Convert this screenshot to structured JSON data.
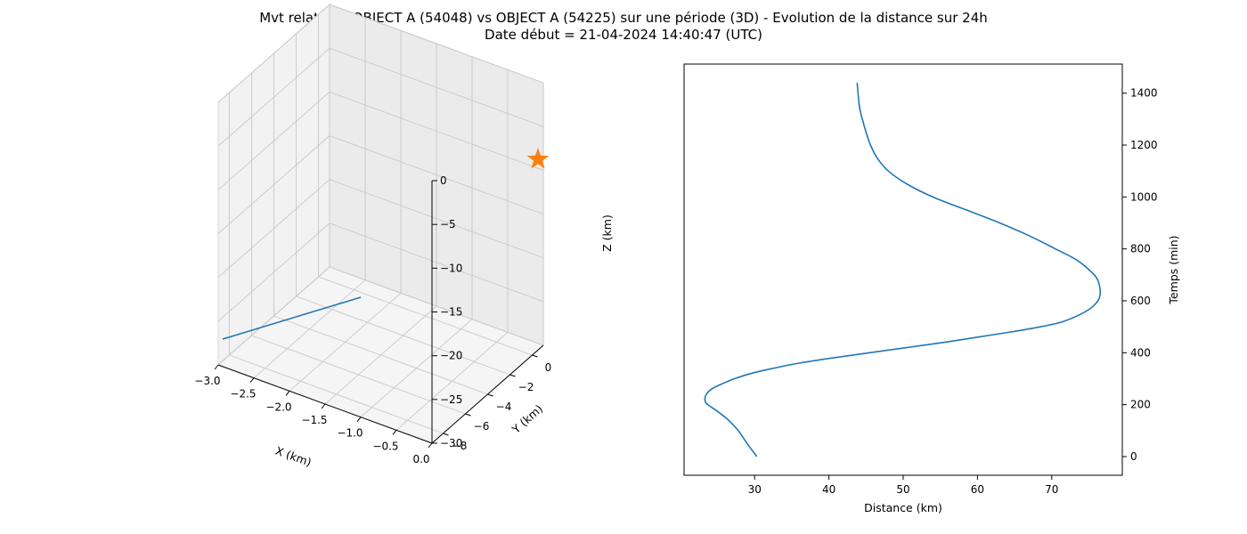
{
  "chart_data": [
    {
      "type": "line3d",
      "title_line1": "Mvt relatif de OBJECT A (54048) vs OBJECT A (54225) sur une période (3D) - Evolution de la distance sur 24h",
      "title_line2": "Date début = 21-04-2024 14:40:47 (UTC)",
      "xlabel": "X (km)",
      "ylabel": "Y (km)",
      "zlabel": "Z (km)",
      "xlim": [
        -3.0,
        0.0
      ],
      "ylim": [
        -9,
        1
      ],
      "zlim": [
        -30,
        0
      ],
      "xticks": [
        "−3.0",
        "−2.5",
        "−2.0",
        "−1.5",
        "−1.0",
        "−0.5",
        "0.0"
      ],
      "yticks": [
        "−8",
        "−6",
        "−4",
        "−2",
        "0"
      ],
      "zticks": [
        "0",
        "−5",
        "−10",
        "−15",
        "−20",
        "−25",
        "−30"
      ],
      "series": [
        {
          "color": "#1f77b4",
          "marker": "line"
        },
        {
          "color": "#ff7f0e",
          "marker": "star"
        }
      ],
      "grid": true
    },
    {
      "type": "line",
      "xlabel": "Distance (km)",
      "ylabel": "Temps (min)",
      "xlim": [
        20.5,
        79.5
      ],
      "ylim": [
        -72,
        1512
      ],
      "xticks": [
        30,
        40,
        50,
        60,
        70
      ],
      "yticks": [
        0,
        200,
        400,
        600,
        800,
        1000,
        1200,
        1400
      ],
      "y_axis_position": "right",
      "grid": false,
      "color": "#1f77b4",
      "x": [
        30.3,
        29.0,
        27.8,
        26.5,
        25.2,
        24.2,
        23.5,
        23.3,
        23.5,
        24.2,
        25.6,
        27.3,
        29.5,
        32.5,
        36.0,
        40.5,
        45.5,
        50.5,
        55.5,
        60.0,
        64.5,
        68.5,
        71.5,
        74.0,
        75.6,
        76.5,
        76.2,
        75.0,
        73.2,
        70.5,
        67.0,
        63.0,
        58.5,
        54.0,
        50.5,
        48.0,
        46.5,
        45.6,
        45.0,
        44.5,
        44.1,
        43.8
      ],
      "y": [
        0,
        50,
        100,
        140,
        170,
        190,
        205,
        220,
        240,
        260,
        280,
        300,
        320,
        340,
        360,
        380,
        400,
        420,
        440,
        460,
        480,
        500,
        520,
        550,
        580,
        620,
        680,
        720,
        760,
        800,
        850,
        900,
        950,
        1000,
        1050,
        1100,
        1150,
        1200,
        1250,
        1300,
        1350,
        1440
      ]
    }
  ]
}
